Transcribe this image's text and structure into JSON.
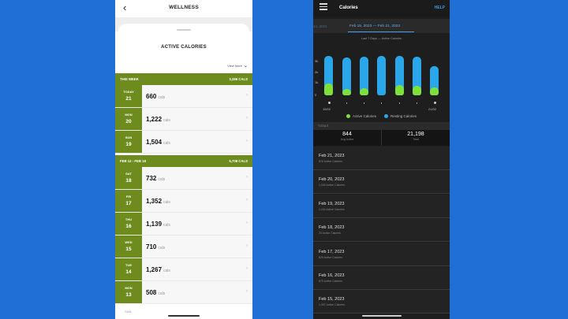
{
  "left": {
    "title": "WELLNESS",
    "sheet_title": "ACTIVE CALORIES",
    "view_more": "View More",
    "this_week": {
      "label": "THIS WEEK",
      "total": "3,386 CALS"
    },
    "this_week_days": [
      {
        "name": "TODAY",
        "date": "21",
        "value": "660",
        "unit": "cals"
      },
      {
        "name": "MON",
        "date": "20",
        "value": "1,222",
        "unit": "cals"
      },
      {
        "name": "SUN",
        "date": "19",
        "value": "1,504",
        "unit": "cals"
      }
    ],
    "prev_week": {
      "label": "FEB 12 - FEB 18",
      "total": "5,708 CALS"
    },
    "prev_week_days": [
      {
        "name": "SAT",
        "date": "18",
        "value": "732",
        "unit": "cals"
      },
      {
        "name": "FRI",
        "date": "17",
        "value": "1,352",
        "unit": "cals"
      },
      {
        "name": "THU",
        "date": "16",
        "value": "1,139",
        "unit": "cals"
      },
      {
        "name": "WED",
        "date": "15",
        "value": "710",
        "unit": "cals"
      },
      {
        "name": "TUE",
        "date": "14",
        "value": "1,267",
        "unit": "cals"
      },
      {
        "name": "MON",
        "date": "13",
        "value": "508",
        "unit": "cals"
      }
    ],
    "partial_label": "SUN"
  },
  "right": {
    "title": "Calories",
    "help": "HELP",
    "prev_range": "14, 2023",
    "current_range": "Feb 15, 2023 — Feb 21, 2023",
    "subtitle": "Last 7 Days — Active Calories",
    "totals_label": "TOTALS",
    "totals": [
      {
        "value": "844",
        "label": "Avg Active"
      },
      {
        "value": "21,198",
        "label": "Total"
      }
    ],
    "days": [
      {
        "date": "Feb 21, 2023",
        "active": "876 Active Calories"
      },
      {
        "date": "Feb 20, 2023",
        "active": "1,043 Active Calories"
      },
      {
        "date": "Feb 19, 2023",
        "active": "1,116 Active Calories"
      },
      {
        "date": "Feb 18, 2023",
        "active": "23 Active Calories"
      },
      {
        "date": "Feb 17, 2023",
        "active": "820 Active Calories"
      },
      {
        "date": "Feb 16, 2023",
        "active": "675 Active Calories"
      },
      {
        "date": "Feb 15, 2023",
        "active": "1,307 Active Calories"
      }
    ]
  },
  "chart_data": {
    "type": "bar",
    "categories": [
      "15/02",
      "16/02",
      "17/02",
      "18/02",
      "19/02",
      "20/02",
      "21/02"
    ],
    "tick_labels_x": [
      "15/02",
      "21/02"
    ],
    "y_ticks": [
      "3k",
      "2k",
      "1k",
      "0"
    ],
    "ylim": [
      0,
      3500
    ],
    "series": [
      {
        "name": "Active Calories",
        "color": "#7fe03c",
        "values": [
          1300,
          700,
          800,
          20,
          1100,
          1050,
          880
        ]
      },
      {
        "name": "Resting Calories",
        "color": "#2aa7ea",
        "values": [
          2300,
          2200,
          2250,
          2300,
          2300,
          2250,
          1700
        ]
      }
    ],
    "legend_position": "bottom"
  }
}
